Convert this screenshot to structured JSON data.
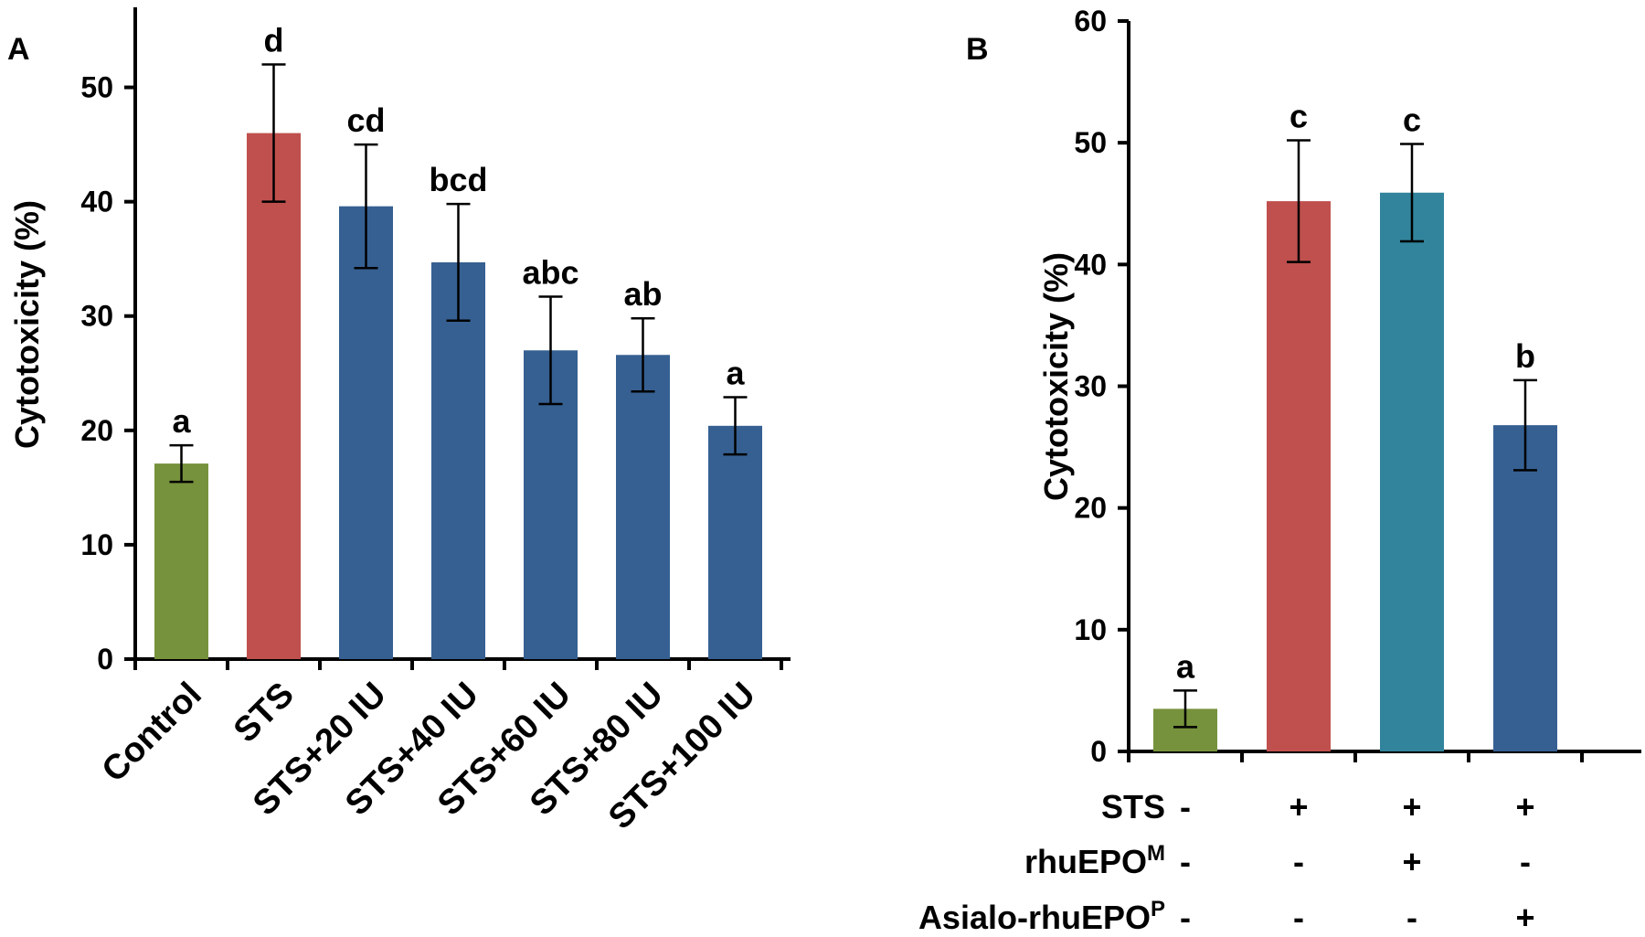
{
  "chart_data": [
    {
      "panel": "A",
      "type": "bar",
      "ylabel": "Cytotoxicity (%)",
      "ylim": [
        0,
        57
      ],
      "yticks": [
        0,
        10,
        20,
        30,
        40,
        50
      ],
      "categories": [
        "Control",
        "STS",
        "STS+20 IU",
        "STS+40 IU",
        "STS+60 IU",
        "STS+80 IU",
        "STS+100 IU"
      ],
      "values": [
        17.1,
        46.0,
        39.6,
        34.7,
        27.0,
        26.6,
        20.4
      ],
      "errors": [
        1.6,
        6.0,
        5.4,
        5.1,
        4.7,
        3.2,
        2.5
      ],
      "significance": [
        "a",
        "d",
        "cd",
        "bcd",
        "abc",
        "ab",
        "a"
      ],
      "colors": [
        "#76923c",
        "#c0504d",
        "#366092",
        "#366092",
        "#366092",
        "#366092",
        "#366092"
      ]
    },
    {
      "panel": "B",
      "type": "bar",
      "ylabel": "Cytotoxicity (%)",
      "ylim": [
        0,
        60
      ],
      "yticks": [
        0,
        10,
        20,
        30,
        40,
        50,
        60
      ],
      "values": [
        3.5,
        45.2,
        45.9,
        26.8
      ],
      "errors": [
        1.5,
        5.0,
        4.0,
        3.7
      ],
      "significance": [
        "a",
        "c",
        "c",
        "b"
      ],
      "colors": [
        "#76923c",
        "#c0504d",
        "#31849b",
        "#366092"
      ],
      "treatment_rows": [
        {
          "label": "STS",
          "superscript": "",
          "values": [
            "-",
            "+",
            "+",
            "+"
          ]
        },
        {
          "label": "rhuEPO",
          "superscript": "M",
          "values": [
            "-",
            "-",
            "+",
            "-"
          ]
        },
        {
          "label": "Asialo-rhuEPO",
          "superscript": "P",
          "values": [
            "-",
            "-",
            "-",
            "+"
          ]
        }
      ]
    }
  ]
}
